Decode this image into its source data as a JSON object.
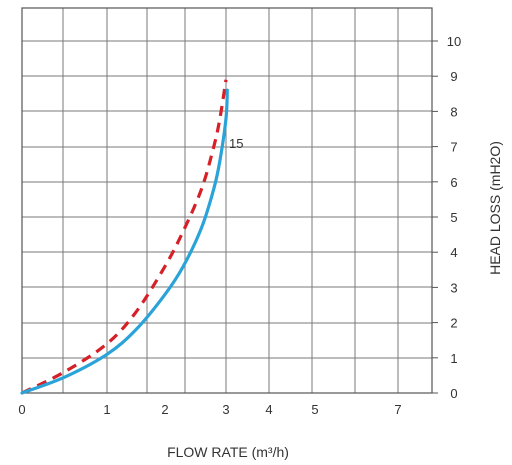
{
  "chart_data": {
    "type": "line",
    "xlabel": "FLOW RATE (m³/h)",
    "ylabel": "HEAD LOSS (mH2O)",
    "x_ticks": [
      "0",
      "1",
      "2",
      "3",
      "4",
      "5",
      "7"
    ],
    "y_ticks": [
      "0",
      "1",
      "2",
      "3",
      "4",
      "5",
      "6",
      "7",
      "8",
      "9",
      "10"
    ],
    "ylim": [
      0,
      10.5
    ],
    "grid": true,
    "series": [
      {
        "name": "15",
        "color": "#29a3d8",
        "style": "solid",
        "x": [
          0,
          0.5,
          1.0,
          1.5,
          2.0,
          2.3,
          2.6,
          2.8,
          2.9,
          3.0,
          3.03
        ],
        "y": [
          0,
          0.45,
          1.1,
          1.8,
          2.8,
          3.6,
          4.7,
          5.8,
          6.6,
          7.8,
          8.6
        ]
      },
      {
        "name": "",
        "color": "#d62027",
        "style": "dashed",
        "x": [
          0,
          0.5,
          1.0,
          1.5,
          2.0,
          2.3,
          2.6,
          2.8,
          2.9,
          3.0
        ],
        "y": [
          0,
          0.6,
          1.4,
          2.3,
          3.6,
          4.6,
          5.8,
          7.0,
          7.8,
          8.9
        ]
      }
    ]
  }
}
